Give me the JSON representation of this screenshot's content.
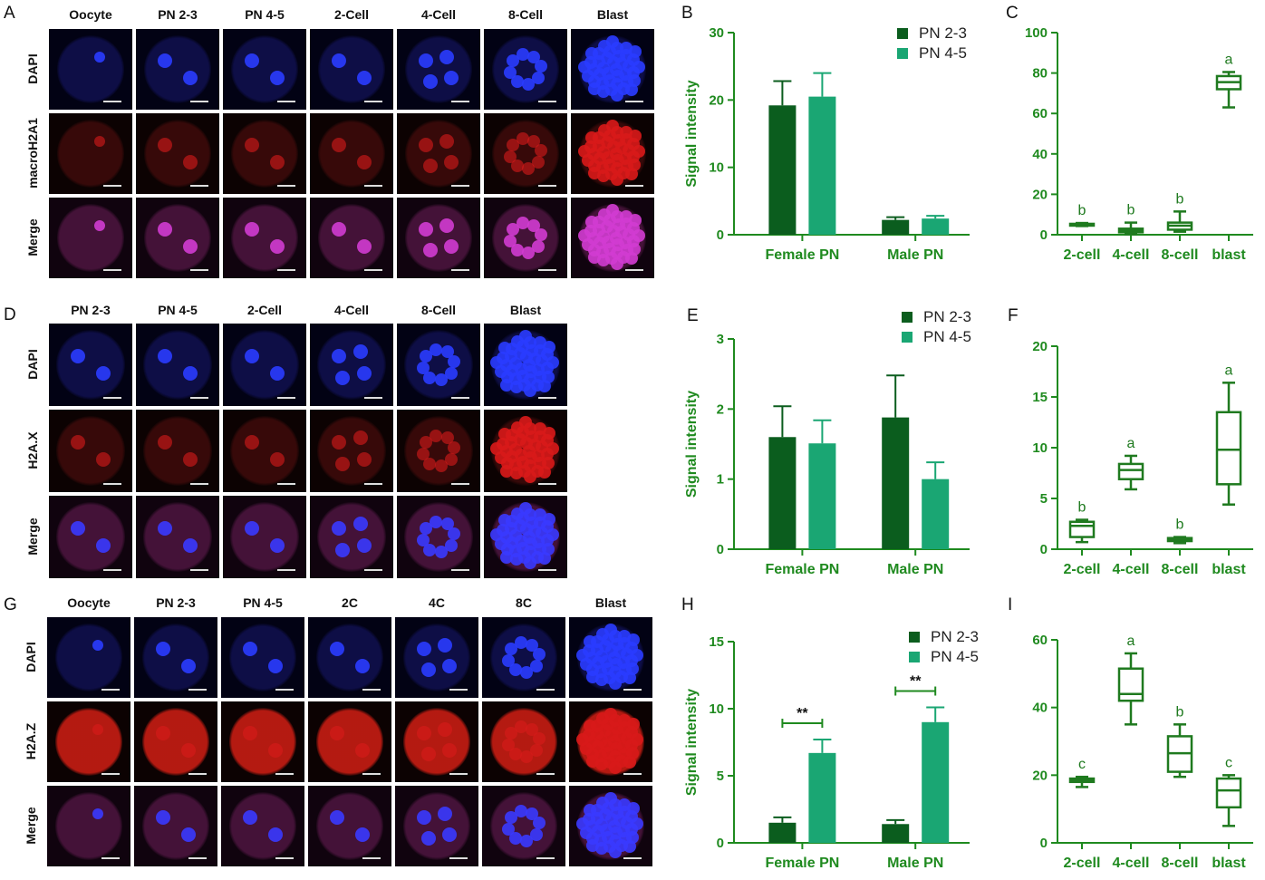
{
  "panels": {
    "A": {
      "letter": "A",
      "columns": [
        "Oocyte",
        "PN 2-3",
        "PN 4-5",
        "2-Cell",
        "4-Cell",
        "8-Cell",
        "Blast"
      ],
      "rows": [
        "DAPI",
        "macroH2A1",
        "Merge"
      ]
    },
    "D": {
      "letter": "D",
      "columns": [
        "PN 2-3",
        "PN 4-5",
        "2-Cell",
        "4-Cell",
        "8-Cell",
        "Blast"
      ],
      "rows": [
        "DAPI",
        "H2A.X",
        "Merge"
      ]
    },
    "G": {
      "letter": "G",
      "columns": [
        "Oocyte",
        "PN 2-3",
        "PN 4-5",
        "2C",
        "4C",
        "8C",
        "Blast"
      ],
      "rows": [
        "DAPI",
        "H2A.Z",
        "Merge"
      ]
    }
  },
  "colors": {
    "dark_green": "#0b5d1e",
    "light_green": "#1aa673",
    "axis_green": "#1f8a1f",
    "box_green": "#1f7a1f",
    "dapi_blue": "#2a3cff",
    "red_signal": "#d81a1a",
    "merge_magenta": "#d23cd2"
  },
  "chart_data": [
    {
      "panel": "B",
      "type": "bar",
      "categories": [
        "Female PN",
        "Male PN"
      ],
      "series": [
        {
          "name": "PN 2-3",
          "values": [
            19.2,
            2.2
          ],
          "errors": [
            3.6,
            0.4
          ]
        },
        {
          "name": "PN 4-5",
          "values": [
            20.5,
            2.4
          ],
          "errors": [
            3.5,
            0.4
          ]
        }
      ],
      "ylabel": "Signal intensity",
      "ylim": [
        0,
        30
      ],
      "yticks": [
        0,
        10,
        20,
        30
      ],
      "legend": "top-right"
    },
    {
      "panel": "C",
      "type": "box",
      "categories": [
        "2-cell",
        "4-cell",
        "8-cell",
        "blast"
      ],
      "boxes": [
        {
          "min": 4.3,
          "q1": 4.6,
          "median": 5.0,
          "q3": 5.4,
          "max": 5.8,
          "letter": "b"
        },
        {
          "min": 0.3,
          "q1": 1.2,
          "median": 2.0,
          "q3": 3.0,
          "max": 6.0,
          "letter": "b"
        },
        {
          "min": 1.5,
          "q1": 2.5,
          "median": 4.5,
          "q3": 6.0,
          "max": 11.5,
          "letter": "b"
        },
        {
          "min": 63.0,
          "q1": 72.0,
          "median": 75.5,
          "q3": 78.5,
          "max": 80.5,
          "letter": "a"
        }
      ],
      "ylim": [
        0,
        100
      ],
      "yticks": [
        0,
        20,
        40,
        60,
        80,
        100
      ]
    },
    {
      "panel": "E",
      "type": "bar",
      "categories": [
        "Female PN",
        "Male PN"
      ],
      "series": [
        {
          "name": "PN 2-3",
          "values": [
            1.6,
            1.88
          ],
          "errors": [
            0.44,
            0.6
          ]
        },
        {
          "name": "PN 4-5",
          "values": [
            1.51,
            1.0
          ],
          "errors": [
            0.33,
            0.24
          ]
        }
      ],
      "ylabel": "Signal intensity",
      "ylim": [
        0,
        3
      ],
      "yticks": [
        0,
        1,
        2,
        3
      ],
      "legend": "top-right"
    },
    {
      "panel": "F",
      "type": "box",
      "categories": [
        "2-cell",
        "4-cell",
        "8-cell",
        "blast"
      ],
      "boxes": [
        {
          "min": 0.7,
          "q1": 1.2,
          "median": 2.3,
          "q3": 2.7,
          "max": 2.9,
          "letter": "b"
        },
        {
          "min": 5.9,
          "q1": 6.9,
          "median": 7.8,
          "q3": 8.4,
          "max": 9.2,
          "letter": "a"
        },
        {
          "min": 0.6,
          "q1": 0.8,
          "median": 0.9,
          "q3": 1.1,
          "max": 1.2,
          "letter": "b"
        },
        {
          "min": 4.4,
          "q1": 6.4,
          "median": 9.8,
          "q3": 13.5,
          "max": 16.4,
          "letter": "a"
        }
      ],
      "ylim": [
        0,
        20
      ],
      "yticks": [
        0,
        5,
        10,
        15,
        20
      ]
    },
    {
      "panel": "H",
      "type": "bar",
      "categories": [
        "Female PN",
        "Male PN"
      ],
      "series": [
        {
          "name": "PN 2-3",
          "values": [
            1.5,
            1.4
          ],
          "errors": [
            0.4,
            0.3
          ]
        },
        {
          "name": "PN 4-5",
          "values": [
            6.7,
            9.0
          ],
          "errors": [
            1.0,
            1.1
          ]
        }
      ],
      "significance": [
        "**",
        "**"
      ],
      "ylabel": "Signal intensity",
      "ylim": [
        0,
        15
      ],
      "yticks": [
        0,
        5,
        10,
        15
      ],
      "legend": "top-right"
    },
    {
      "panel": "I",
      "type": "box",
      "categories": [
        "2-cell",
        "4-cell",
        "8-cell",
        "blast"
      ],
      "boxes": [
        {
          "min": 16.5,
          "q1": 18.0,
          "median": 18.5,
          "q3": 19.0,
          "max": 19.5,
          "letter": "c"
        },
        {
          "min": 35.0,
          "q1": 42.0,
          "median": 44.0,
          "q3": 51.5,
          "max": 56.0,
          "letter": "a"
        },
        {
          "min": 19.5,
          "q1": 21.0,
          "median": 26.5,
          "q3": 31.5,
          "max": 35.0,
          "letter": "b"
        },
        {
          "min": 5.0,
          "q1": 10.5,
          "median": 15.5,
          "q3": 19.0,
          "max": 20.0,
          "letter": "c"
        }
      ],
      "ylim": [
        0,
        60
      ],
      "yticks": [
        0,
        20,
        40,
        60
      ]
    }
  ]
}
